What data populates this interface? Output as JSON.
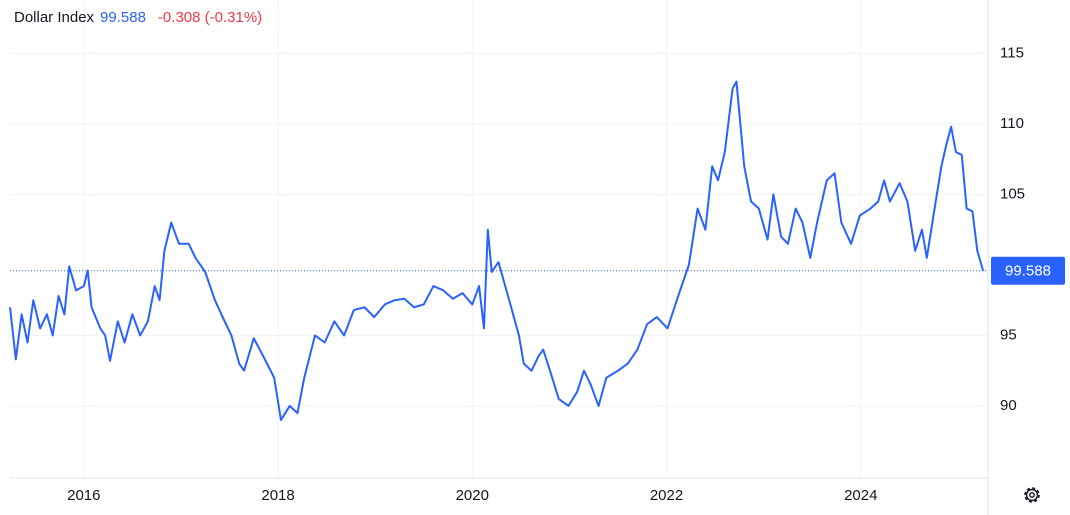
{
  "chart_data": {
    "type": "line",
    "title": "Dollar Index",
    "last_value": 99.588,
    "change_text": "-0.308 (-0.31%)",
    "xlim": [
      2015.24,
      2025.31
    ],
    "xticks": [
      2016,
      2018,
      2020,
      2022,
      2024
    ],
    "ylim": [
      84.89,
      118.79
    ],
    "yticks": [
      90,
      95,
      105,
      110,
      115
    ],
    "grid": true,
    "series": [
      {
        "name": "Dollar Index",
        "color": "#2962ff",
        "x": [
          2015.24,
          2015.3,
          2015.36,
          2015.42,
          2015.48,
          2015.55,
          2015.62,
          2015.68,
          2015.74,
          2015.8,
          2015.85,
          2015.92,
          2016.0,
          2016.04,
          2016.08,
          2016.17,
          2016.22,
          2016.27,
          2016.35,
          2016.42,
          2016.5,
          2016.58,
          2016.66,
          2016.73,
          2016.78,
          2016.83,
          2016.9,
          2016.98,
          2017.08,
          2017.15,
          2017.25,
          2017.35,
          2017.45,
          2017.52,
          2017.6,
          2017.65,
          2017.75,
          2017.85,
          2017.96,
          2018.03,
          2018.12,
          2018.2,
          2018.27,
          2018.38,
          2018.48,
          2018.58,
          2018.68,
          2018.78,
          2018.89,
          2018.99,
          2019.1,
          2019.2,
          2019.3,
          2019.4,
          2019.5,
          2019.6,
          2019.7,
          2019.8,
          2019.9,
          2020.0,
          2020.07,
          2020.12,
          2020.16,
          2020.2,
          2020.27,
          2020.38,
          2020.48,
          2020.53,
          2020.61,
          2020.68,
          2020.73,
          2020.8,
          2020.89,
          2020.99,
          2021.08,
          2021.15,
          2021.22,
          2021.3,
          2021.38,
          2021.5,
          2021.6,
          2021.7,
          2021.8,
          2021.9,
          2022.01,
          2022.13,
          2022.23,
          2022.32,
          2022.4,
          2022.47,
          2022.53,
          2022.6,
          2022.68,
          2022.72,
          2022.8,
          2022.87,
          2022.95,
          2023.04,
          2023.1,
          2023.18,
          2023.25,
          2023.33,
          2023.4,
          2023.48,
          2023.55,
          2023.65,
          2023.73,
          2023.8,
          2023.9,
          2023.99,
          2024.1,
          2024.18,
          2024.24,
          2024.3,
          2024.4,
          2024.48,
          2024.56,
          2024.63,
          2024.68,
          2024.76,
          2024.83,
          2024.88,
          2024.93,
          2024.98,
          2025.04,
          2025.09,
          2025.15,
          2025.2,
          2025.26
        ],
        "values": [
          97.0,
          93.3,
          96.5,
          94.5,
          97.5,
          95.5,
          96.5,
          95.0,
          97.8,
          96.5,
          99.9,
          98.2,
          98.5,
          99.6,
          97.0,
          95.5,
          95.0,
          93.2,
          96.0,
          94.5,
          96.5,
          95.0,
          96.0,
          98.5,
          97.5,
          101.0,
          103.0,
          101.5,
          101.5,
          100.5,
          99.5,
          97.5,
          96.0,
          95.0,
          93.0,
          92.5,
          94.8,
          93.5,
          92.0,
          89.0,
          90.0,
          89.5,
          92.0,
          95.0,
          94.5,
          96.0,
          95.0,
          96.8,
          97.0,
          96.3,
          97.2,
          97.5,
          97.6,
          97.0,
          97.2,
          98.5,
          98.2,
          97.6,
          98.0,
          97.2,
          98.5,
          95.5,
          102.5,
          99.5,
          100.2,
          97.5,
          95.0,
          93.0,
          92.5,
          93.5,
          94.0,
          92.5,
          90.5,
          90.0,
          91.0,
          92.5,
          91.5,
          90.0,
          92.0,
          92.5,
          93.0,
          94.0,
          95.8,
          96.3,
          95.5,
          98.0,
          100.0,
          104.0,
          102.5,
          107.0,
          106.0,
          108.0,
          112.5,
          113.0,
          107.0,
          104.5,
          104.0,
          101.8,
          105.0,
          102.0,
          101.5,
          104.0,
          103.0,
          100.5,
          103.0,
          106.0,
          106.5,
          103.0,
          101.5,
          103.5,
          104.0,
          104.5,
          106.0,
          104.5,
          105.8,
          104.5,
          101.0,
          102.5,
          100.5,
          104.0,
          107.0,
          108.5,
          109.8,
          108.0,
          107.8,
          104.0,
          103.8,
          101.0,
          99.588
        ]
      }
    ]
  }
}
